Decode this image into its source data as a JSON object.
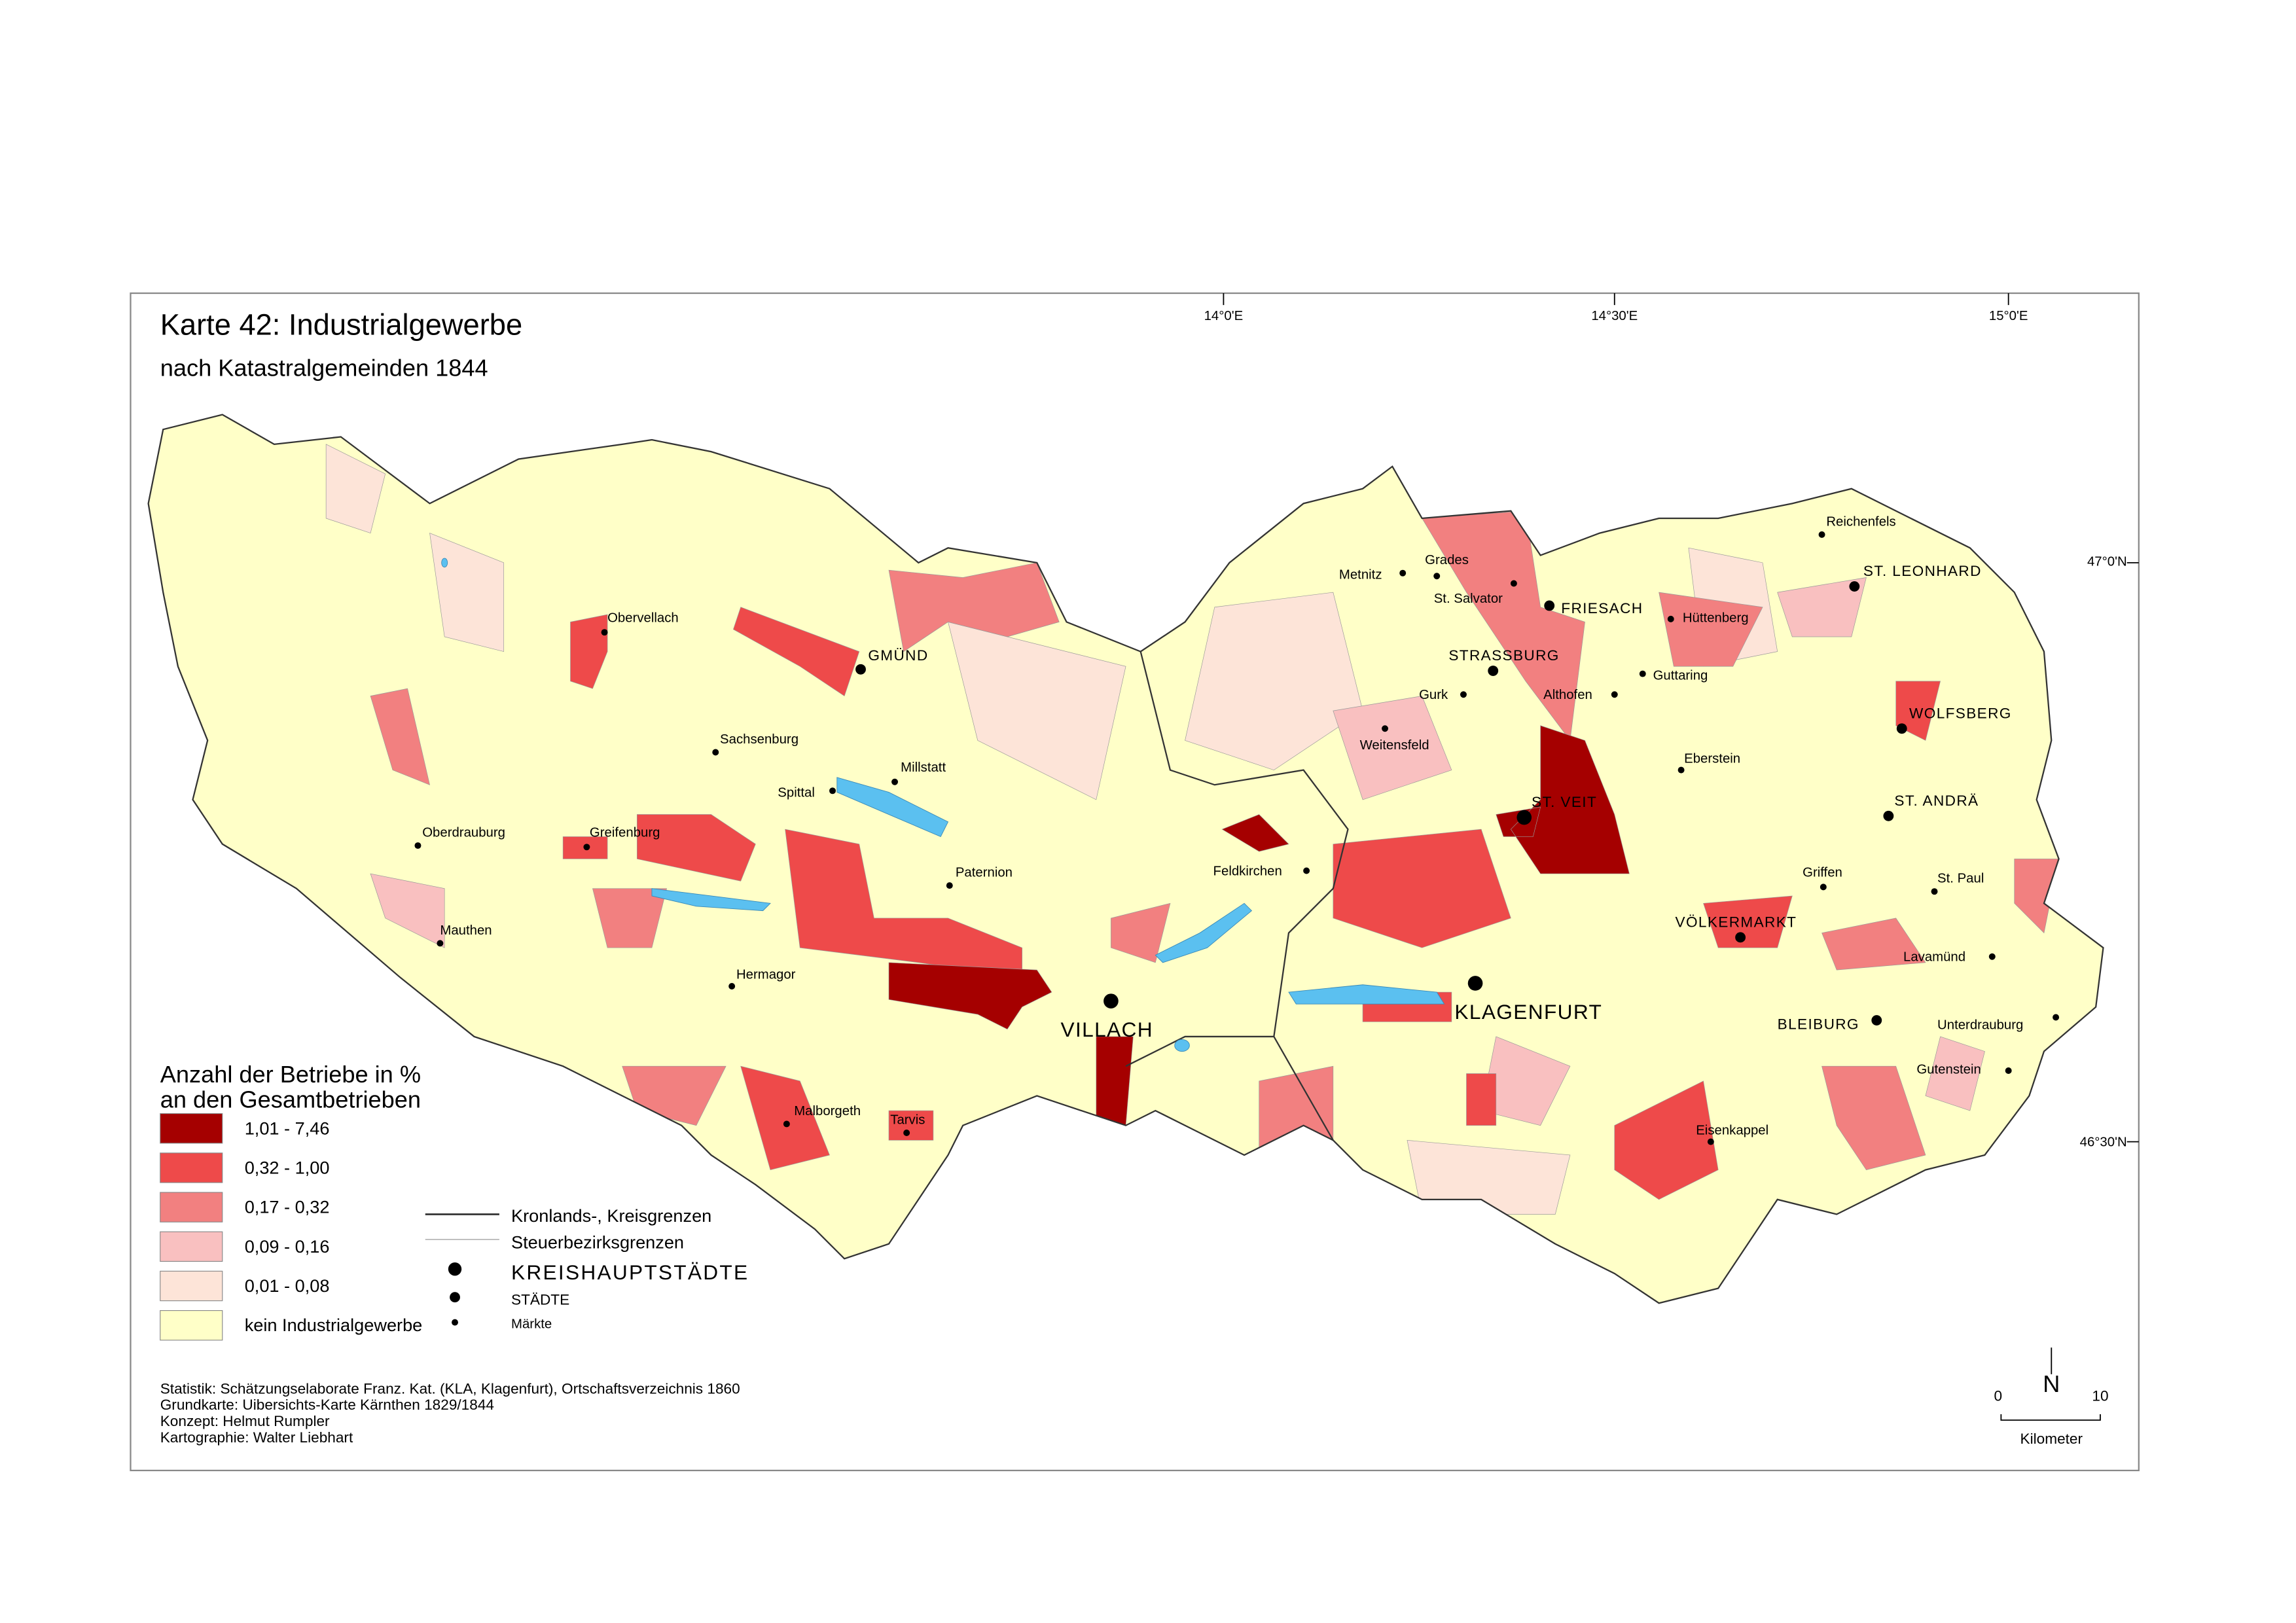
{
  "header": {
    "title": "Karte 42: Industrialgewerbe",
    "subtitle": "nach Katastralgemeinden 1844"
  },
  "graticule": {
    "lon": [
      "14°0'E",
      "14°30'E",
      "15°0'E"
    ],
    "lat": [
      "47°0'N",
      "46°30'N"
    ]
  },
  "places": [
    {
      "label": "Obervellach"
    },
    {
      "label": "GMÜND"
    },
    {
      "label": "Sachsenburg"
    },
    {
      "label": "Millstatt"
    },
    {
      "label": "Spittal"
    },
    {
      "label": "Oberdrauburg"
    },
    {
      "label": "Greifenburg"
    },
    {
      "label": "Paternion"
    },
    {
      "label": "Mauthen"
    },
    {
      "label": "Hermagor"
    },
    {
      "label": "VILLACH"
    },
    {
      "label": "Malborgeth"
    },
    {
      "label": "Tarvis"
    },
    {
      "label": "Feldkirchen"
    },
    {
      "label": "Metnitz"
    },
    {
      "label": "Grades"
    },
    {
      "label": "St. Salvator"
    },
    {
      "label": "FRIESACH"
    },
    {
      "label": "Hüttenberg"
    },
    {
      "label": "STRASSBURG"
    },
    {
      "label": "Gurk"
    },
    {
      "label": "Althofen"
    },
    {
      "label": "Guttaring"
    },
    {
      "label": "Weitensfeld"
    },
    {
      "label": "Eberstein"
    },
    {
      "label": "ST. VEIT"
    },
    {
      "label": "KLAGENFURT"
    },
    {
      "label": "VÖLKERMARKT"
    },
    {
      "label": "Griffen"
    },
    {
      "label": "Eisenkappel"
    },
    {
      "label": "Reichenfels"
    },
    {
      "label": "ST. LEONHARD"
    },
    {
      "label": "WOLFSBERG"
    },
    {
      "label": "ST. ANDRÄ"
    },
    {
      "label": "St. Paul"
    },
    {
      "label": "Lavamünd"
    },
    {
      "label": "BLEIBURG"
    },
    {
      "label": "Unterdrauburg"
    },
    {
      "label": "Gutenstein"
    }
  ],
  "legend": {
    "title": [
      "Anzahl der Betriebe in %",
      "an den Gesamtbetrieben"
    ],
    "classes": [
      "1,01 - 7,46",
      "0,32 - 1,00",
      "0,17 - 0,32",
      "0,09 - 0,16",
      "0,01 - 0,08",
      "kein Industrialgewerbe"
    ],
    "symbols": [
      "Kronlands-, Kreisgrenzen",
      "Steuerbezirksgrenzen",
      "KREISHAUPTSTÄDTE",
      "STÄDTE",
      "Märkte"
    ]
  },
  "sources": [
    "Statistik: Schätzungselaborate Franz. Kat. (KLA, Klagenfurt), Ortschaftsverzeichnis 1860",
    "Grundkarte: Uibersichts-Karte Kärnthen 1829/1844",
    "Konzept: Helmut Rumpler",
    "Kartographie: Walter Liebhart"
  ],
  "scale": {
    "start": "0",
    "end": "10",
    "unit": "Kilometer",
    "north": "N"
  }
}
